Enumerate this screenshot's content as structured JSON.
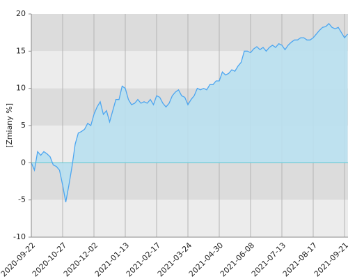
{
  "chart_data": {
    "type": "area",
    "ylabel": "[Zmiany %]",
    "categories": [
      "2020-09-22",
      null,
      null,
      null,
      null,
      null,
      null,
      null,
      null,
      null,
      "2020-10-27",
      null,
      null,
      null,
      null,
      null,
      null,
      null,
      null,
      null,
      "2020-12-02",
      null,
      null,
      null,
      null,
      null,
      null,
      null,
      null,
      null,
      "2021-01-13",
      null,
      null,
      null,
      null,
      null,
      null,
      null,
      null,
      null,
      "2021-02-17",
      null,
      null,
      null,
      null,
      null,
      null,
      null,
      null,
      null,
      "2021-03-24",
      null,
      null,
      null,
      null,
      null,
      null,
      null,
      null,
      null,
      "2021-04-30",
      null,
      null,
      null,
      null,
      null,
      null,
      null,
      null,
      null,
      "2021-06-08",
      null,
      null,
      null,
      null,
      null,
      null,
      null,
      null,
      null,
      "2021-07-13",
      null,
      null,
      null,
      null,
      null,
      null,
      null,
      null,
      null,
      "2021-08-17",
      null,
      null,
      null,
      null,
      null,
      null,
      null,
      null,
      null,
      "2021-09-21",
      null
    ],
    "series": [
      {
        "color": "#4da6f0",
        "fill": "#b9e0f0",
        "values": [
          0,
          -1,
          1.5,
          1,
          1.5,
          1.2,
          0.8,
          -0.3,
          -0.5,
          -1,
          -3,
          -5.3,
          -3,
          -0.5,
          2.5,
          4,
          4.2,
          4.5,
          5.3,
          5,
          6.5,
          7.5,
          8.2,
          6.5,
          7,
          5.5,
          7,
          8.5,
          8.5,
          10.3,
          10,
          8.5,
          7.8,
          8,
          8.5,
          8,
          8.2,
          8,
          8.5,
          7.8,
          9,
          8.8,
          8,
          7.5,
          8,
          9,
          9.5,
          9.8,
          9,
          8.8,
          7.8,
          8.5,
          9,
          10,
          9.8,
          10,
          9.8,
          10.5,
          10.5,
          11,
          11,
          12.2,
          11.8,
          12,
          12.5,
          12.3,
          13,
          13.5,
          15,
          15,
          14.8,
          15.3,
          15.6,
          15.2,
          15.5,
          15,
          15.5,
          15.8,
          15.5,
          16,
          15.8,
          15.2,
          15.8,
          16.2,
          16.5,
          16.5,
          16.8,
          16.8,
          16.5,
          16.5,
          16.8,
          17.3,
          17.8,
          18.2,
          18.3,
          18.7,
          18.2,
          18,
          18.2,
          17.5,
          16.8,
          17.3
        ]
      }
    ],
    "ylim": [
      -10,
      20
    ],
    "yticks": [
      20,
      15,
      10,
      5,
      0,
      -5,
      -10
    ],
    "grid": true
  }
}
